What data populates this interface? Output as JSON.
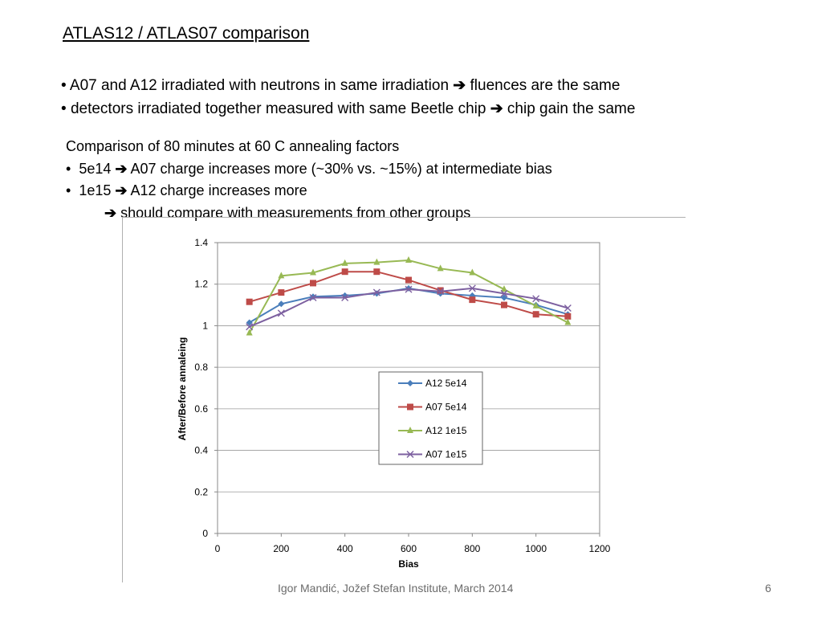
{
  "slide": {
    "title": "ATLAS12 / ATLAS07 comparison",
    "bullets": [
      {
        "pre": "A07 and A12 irradiated with neutrons in same irradiation",
        "arrow": "➔",
        "post": "fluences are the same"
      },
      {
        "pre": "detectors irradiated together measured with same Beetle chip",
        "arrow": "➔",
        "post": "chip gain the same"
      }
    ],
    "sub_heading": "Comparison of 80 minutes at 60 C annealing factors",
    "sub_items": [
      {
        "pre": "5e14",
        "arrow": "➔",
        "post": "A07 charge increases more (~30% vs. ~15%) at intermediate bias"
      },
      {
        "pre": "1e15",
        "arrow": "➔",
        "post": "A12 charge increases more"
      }
    ],
    "conclusion": {
      "arrow": "➔",
      "text": "should compare with measurements from other groups"
    },
    "bullet_char": "•",
    "footer": "Igor Mandić, Jožef Stefan Institute, March 2014",
    "page_number": "6"
  },
  "chart_data": {
    "type": "line",
    "xlabel": "Bias",
    "ylabel": "After/Before  annaleing",
    "xlim": [
      0,
      1200
    ],
    "ylim": [
      0,
      1.4
    ],
    "xticks": [
      0,
      200,
      400,
      600,
      800,
      1000,
      1200
    ],
    "yticks": [
      0,
      0.2,
      0.4,
      0.6,
      0.8,
      1,
      1.2,
      1.4
    ],
    "ytick_labels": [
      "0",
      "0.2",
      "0.4",
      "0.6",
      "0.8",
      "1",
      "1.2",
      "1.4"
    ],
    "grid": "horizontal",
    "legend_position": "center-right",
    "series": [
      {
        "name": "A12 5e14",
        "color": "#4a7ebb",
        "marker": "diamond",
        "x": [
          100,
          200,
          300,
          400,
          500,
          600,
          700,
          800,
          900,
          1000,
          1100
        ],
        "y": [
          1.015,
          1.105,
          1.14,
          1.145,
          1.155,
          1.18,
          1.155,
          1.145,
          1.135,
          1.1,
          1.055
        ]
      },
      {
        "name": "A07 5e14",
        "color": "#be4b48",
        "marker": "square",
        "x": [
          100,
          200,
          300,
          400,
          500,
          600,
          700,
          800,
          900,
          1000,
          1100
        ],
        "y": [
          1.115,
          1.16,
          1.205,
          1.26,
          1.26,
          1.22,
          1.17,
          1.125,
          1.1,
          1.055,
          1.045
        ]
      },
      {
        "name": "A12 1e15",
        "color": "#98b954",
        "marker": "triangle",
        "x": [
          100,
          200,
          300,
          400,
          500,
          600,
          700,
          800,
          900,
          1000,
          1100
        ],
        "y": [
          0.965,
          1.24,
          1.255,
          1.3,
          1.305,
          1.315,
          1.275,
          1.255,
          1.175,
          1.095,
          1.015
        ]
      },
      {
        "name": "A07 1e15",
        "color": "#7d60a0",
        "marker": "x",
        "x": [
          100,
          200,
          300,
          400,
          500,
          600,
          700,
          800,
          900,
          1000,
          1100
        ],
        "y": [
          0.995,
          1.06,
          1.135,
          1.135,
          1.16,
          1.175,
          1.165,
          1.18,
          1.155,
          1.13,
          1.085
        ]
      }
    ]
  }
}
